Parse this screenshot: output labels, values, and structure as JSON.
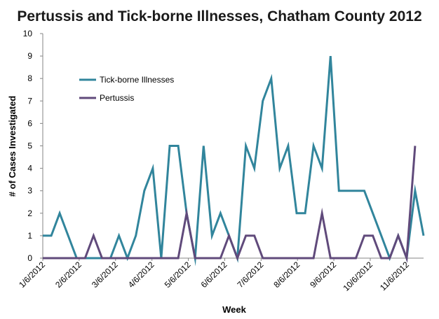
{
  "chart_data": {
    "type": "line",
    "title": "Pertussis and Tick-borne Illnesses, Chatham County 2012",
    "xlabel": "Week",
    "ylabel": "# of Cases Investigated",
    "ylim": [
      0,
      10
    ],
    "yticks": [
      0,
      1,
      2,
      3,
      4,
      5,
      6,
      7,
      8,
      9,
      10
    ],
    "x_tick_labels": [
      "1/6/2012",
      "2/6/2012",
      "3/6/2012",
      "4/6/2012",
      "5/6/2012",
      "6/6/2012",
      "7/6/2012",
      "8/6/2012",
      "9/6/2012",
      "10/6/2012",
      "11/6/2012"
    ],
    "grid": false,
    "legend_position": "top-left",
    "series": [
      {
        "name": "Tick-borne Illnesses",
        "color": "#31859c",
        "values": [
          1,
          1,
          2,
          1,
          0,
          0,
          0,
          0,
          0,
          1,
          0,
          1,
          3,
          4,
          0,
          5,
          5,
          2,
          0,
          5,
          1,
          2,
          1,
          0,
          5,
          4,
          7,
          8,
          4,
          5,
          2,
          2,
          5,
          4,
          9,
          3,
          3,
          3,
          3,
          2,
          1,
          0,
          1,
          0,
          3,
          1
        ]
      },
      {
        "name": "Pertussis",
        "color": "#604a7b",
        "values": [
          0,
          0,
          0,
          0,
          0,
          0,
          1,
          0,
          0,
          0,
          0,
          0,
          0,
          0,
          0,
          0,
          0,
          2,
          0,
          0,
          0,
          0,
          1,
          0,
          1,
          1,
          0,
          0,
          0,
          0,
          0,
          0,
          0,
          2,
          0,
          0,
          0,
          0,
          1,
          1,
          0,
          0,
          1,
          0,
          5,
          null
        ]
      }
    ]
  }
}
